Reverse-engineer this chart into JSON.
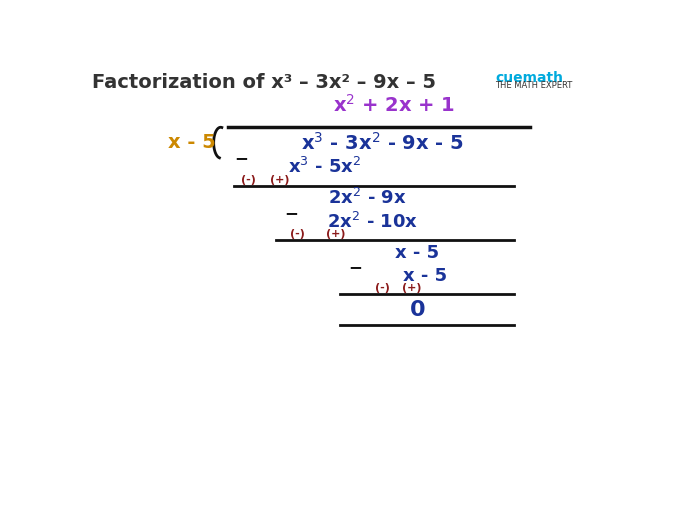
{
  "title": "Factorization of x³ – 3x² – 9x – 5",
  "title_color": "#333333",
  "title_fontsize": 14,
  "bg_color": "#ffffff",
  "colors": {
    "purple": "#9933cc",
    "orange": "#cc8800",
    "blue": "#1a3399",
    "dark_red": "#8b1a1a",
    "black": "#111111"
  },
  "lw": 2.0,
  "fs_main": 13,
  "fs_small": 8
}
